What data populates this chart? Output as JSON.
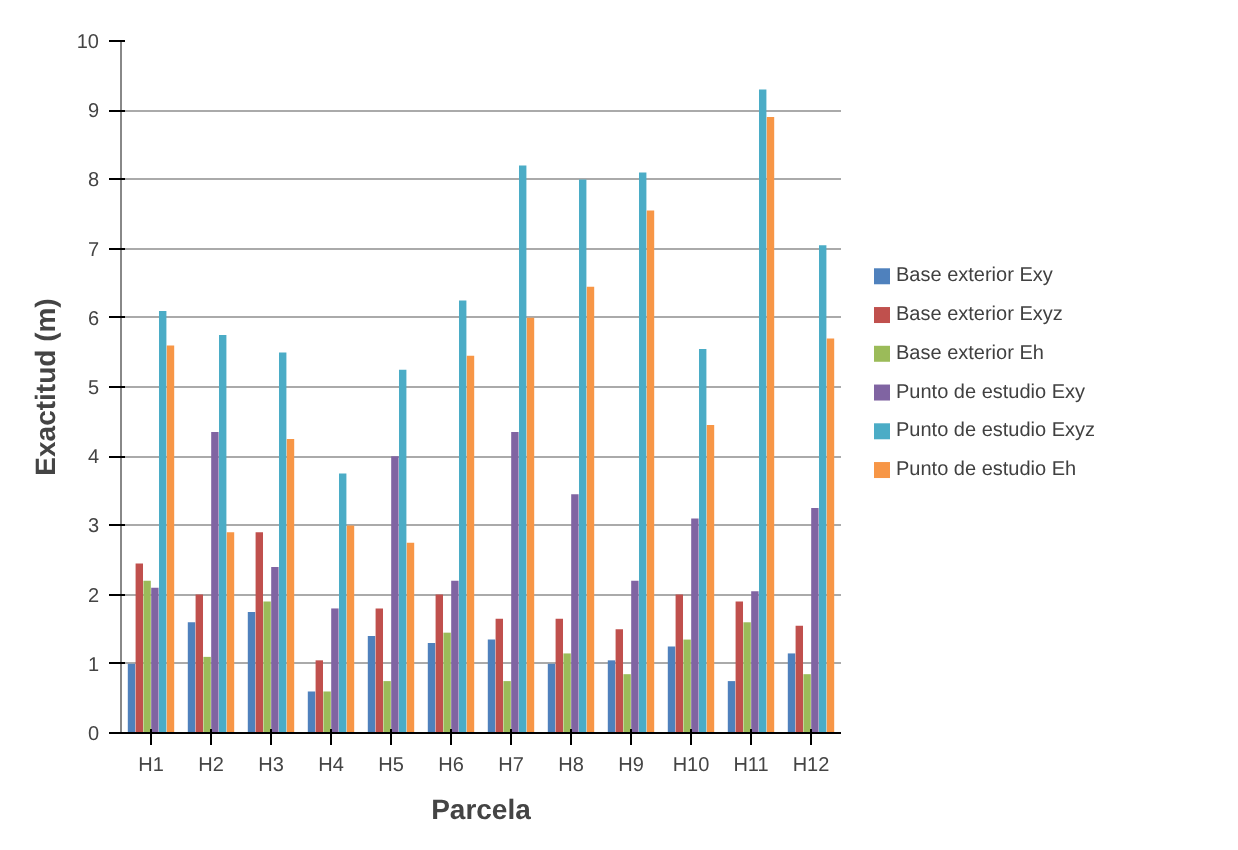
{
  "chart_data": {
    "type": "bar",
    "xlabel": "Parcela",
    "ylabel": "Exactitud (m)",
    "categories": [
      "H1",
      "H2",
      "H3",
      "H4",
      "H5",
      "H6",
      "H7",
      "H8",
      "H9",
      "H10",
      "H11",
      "H12"
    ],
    "series": [
      {
        "name": "Base exterior Exy",
        "color": "#4f81bd",
        "values": [
          1.0,
          1.6,
          1.75,
          0.6,
          1.4,
          1.3,
          1.35,
          1.0,
          1.05,
          1.25,
          0.75,
          1.15
        ]
      },
      {
        "name": "Base exterior Exyz",
        "color": "#c0504d",
        "values": [
          2.45,
          2.0,
          2.9,
          1.05,
          1.8,
          2.0,
          1.65,
          1.65,
          1.5,
          2.0,
          1.9,
          1.55
        ]
      },
      {
        "name": "Base exterior Eh",
        "color": "#9bbb59",
        "values": [
          2.2,
          1.1,
          1.9,
          0.6,
          0.75,
          1.45,
          0.75,
          1.15,
          0.85,
          1.35,
          1.6,
          0.85
        ]
      },
      {
        "name": "Punto de estudio Exy",
        "color": "#8064a2",
        "values": [
          2.1,
          4.35,
          2.4,
          1.8,
          4.0,
          2.2,
          4.35,
          3.45,
          2.2,
          3.1,
          2.05,
          3.25
        ]
      },
      {
        "name": "Punto de estudio Exyz",
        "color": "#4bacc6",
        "values": [
          6.1,
          5.75,
          5.5,
          3.75,
          5.25,
          6.25,
          8.2,
          8.0,
          8.1,
          5.55,
          9.3,
          7.05
        ]
      },
      {
        "name": "Punto de estudio Eh",
        "color": "#f79646",
        "values": [
          5.6,
          2.9,
          4.25,
          3.0,
          2.75,
          5.45,
          6.0,
          6.45,
          7.55,
          4.45,
          8.9,
          5.7
        ]
      }
    ],
    "ylim": [
      0,
      10
    ],
    "yticks": [
      0,
      1,
      2,
      3,
      4,
      5,
      6,
      7,
      8,
      9,
      10
    ],
    "grid": "y",
    "legend": "right"
  }
}
